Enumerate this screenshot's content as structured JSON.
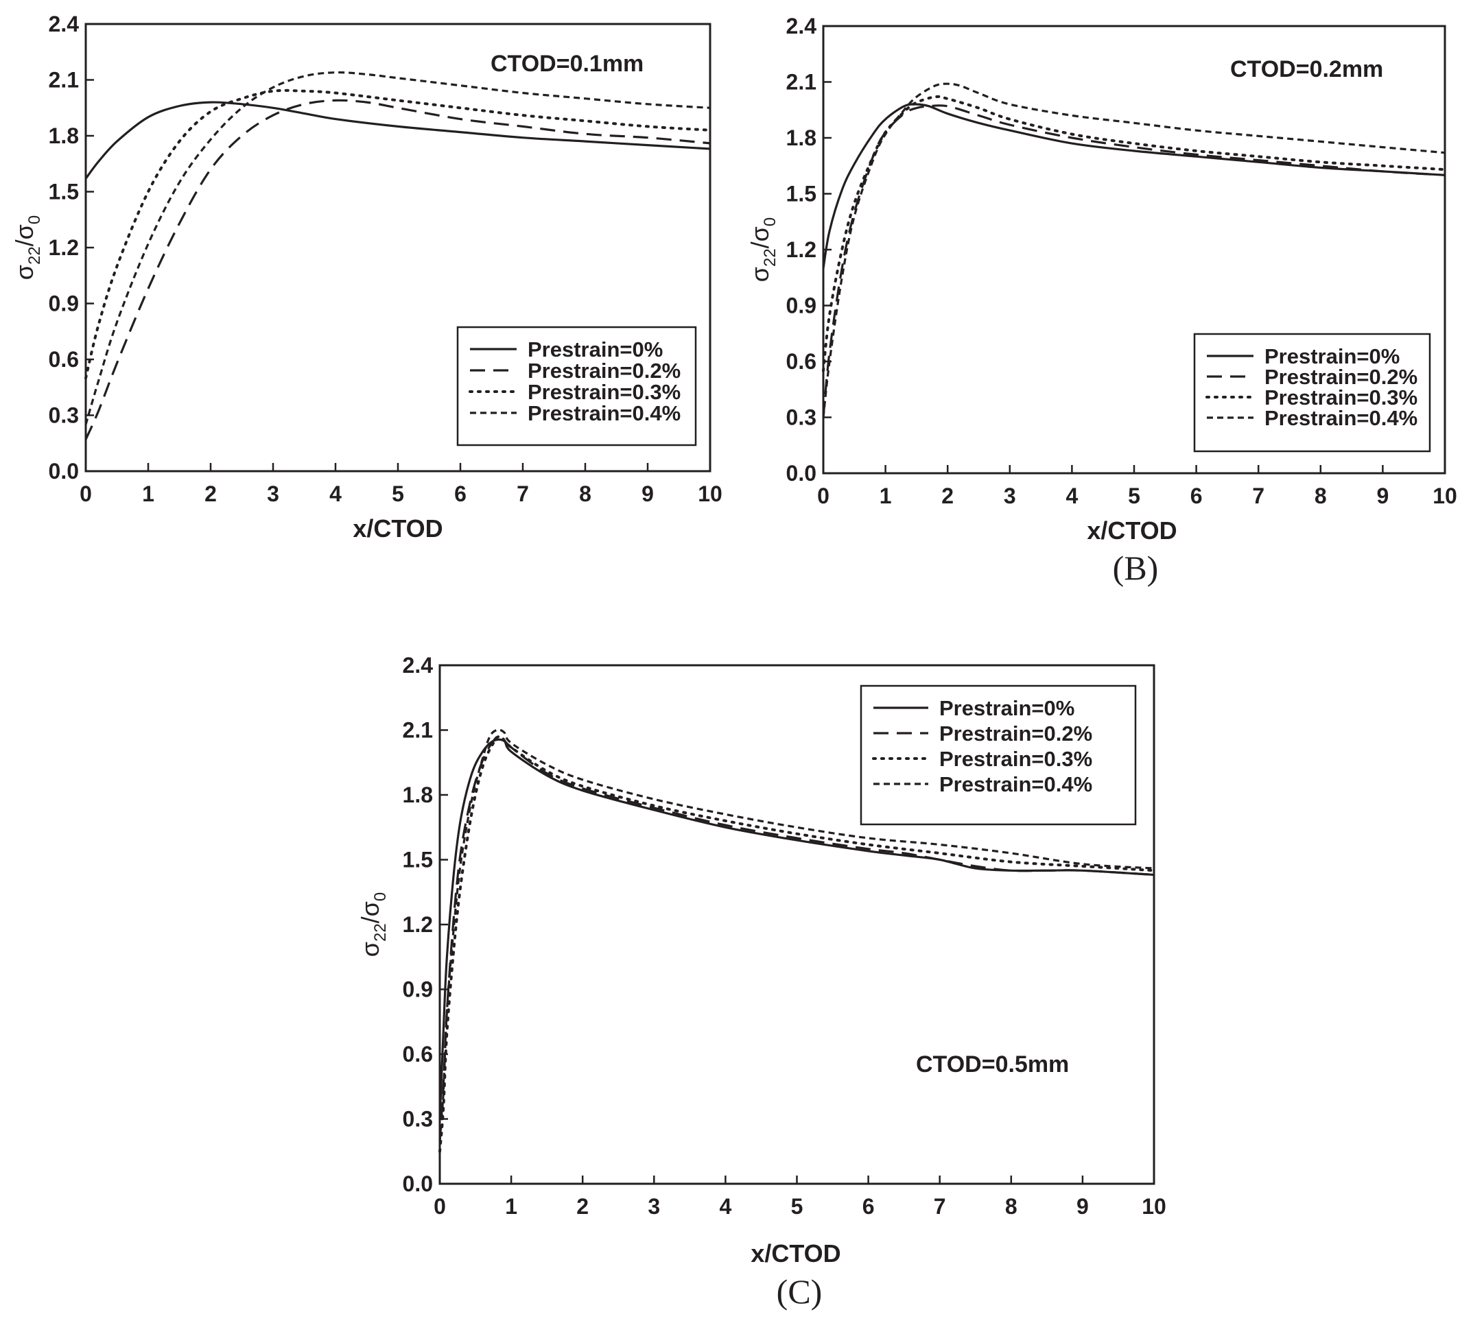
{
  "figure": {
    "legend_entries": [
      "Prestrain=0%",
      "Prestrain=0.2%",
      "Prestrain=0.3%",
      "Prestrain=0.4%"
    ],
    "series_styles": {
      "Prestrain=0%": "solid",
      "Prestrain=0.2%": "long-dash",
      "Prestrain=0.3%": "dotted",
      "Prestrain=0.4%": "short-dash"
    },
    "line_color": "#231f20"
  },
  "chart_data": [
    {
      "type": "line",
      "panel_label": "",
      "annotation": "CTOD=0.1mm",
      "xlabel": "x/CTOD",
      "ylabel": "σ22/σ0",
      "xlim": [
        0,
        10
      ],
      "ylim": [
        0,
        2.4
      ],
      "xticks": [
        "0",
        "1",
        "2",
        "3",
        "4",
        "5",
        "6",
        "7",
        "8",
        "9",
        "10"
      ],
      "yticks": [
        "0.0",
        "0.3",
        "0.6",
        "0.9",
        "1.2",
        "1.5",
        "1.8",
        "2.1",
        "2.4"
      ],
      "legend_position": "lower-right",
      "series": [
        {
          "name": "Prestrain=0%",
          "x": [
            0,
            0.2,
            0.5,
            1,
            1.5,
            2,
            2.5,
            3,
            3.5,
            4,
            5,
            6,
            7,
            8,
            9,
            10
          ],
          "y": [
            1.57,
            1.66,
            1.77,
            1.9,
            1.96,
            1.98,
            1.97,
            1.95,
            1.92,
            1.89,
            1.85,
            1.82,
            1.79,
            1.77,
            1.75,
            1.73
          ]
        },
        {
          "name": "Prestrain=0.2%",
          "x": [
            0,
            0.2,
            0.5,
            1,
            1.5,
            2,
            2.5,
            3,
            3.5,
            4,
            4.5,
            5,
            6,
            7,
            8,
            9,
            10
          ],
          "y": [
            0.17,
            0.32,
            0.58,
            0.98,
            1.33,
            1.62,
            1.8,
            1.91,
            1.97,
            1.99,
            1.98,
            1.95,
            1.89,
            1.85,
            1.81,
            1.79,
            1.76
          ]
        },
        {
          "name": "Prestrain=0.3%",
          "x": [
            0,
            0.2,
            0.5,
            1,
            1.5,
            2,
            2.5,
            3,
            3.5,
            4,
            5,
            6,
            7,
            8,
            9,
            10
          ],
          "y": [
            0.5,
            0.78,
            1.1,
            1.5,
            1.77,
            1.93,
            2.0,
            2.04,
            2.04,
            2.03,
            1.99,
            1.95,
            1.91,
            1.88,
            1.85,
            1.83
          ]
        },
        {
          "name": "Prestrain=0.4%",
          "x": [
            0,
            0.2,
            0.5,
            1,
            1.5,
            2,
            2.5,
            3,
            3.5,
            4,
            4.5,
            5,
            6,
            7,
            8,
            9,
            10
          ],
          "y": [
            0.25,
            0.48,
            0.8,
            1.22,
            1.55,
            1.78,
            1.95,
            2.06,
            2.12,
            2.14,
            2.13,
            2.11,
            2.07,
            2.03,
            2.0,
            1.97,
            1.95
          ]
        }
      ]
    },
    {
      "type": "line",
      "panel_label": "(B)",
      "annotation": "CTOD=0.2mm",
      "xlabel": "x/CTOD",
      "ylabel": "σ22/σ0",
      "xlim": [
        0,
        10
      ],
      "ylim": [
        0,
        2.4
      ],
      "xticks": [
        "0",
        "1",
        "2",
        "3",
        "4",
        "5",
        "6",
        "7",
        "8",
        "9",
        "10"
      ],
      "yticks": [
        "0.0",
        "0.3",
        "0.6",
        "0.9",
        "1.2",
        "1.5",
        "1.8",
        "2.1",
        "2.4"
      ],
      "legend_position": "lower-right",
      "series": [
        {
          "name": "Prestrain=0%",
          "x": [
            0,
            0.1,
            0.3,
            0.5,
            0.8,
            1,
            1.3,
            1.5,
            1.7,
            2,
            2.5,
            3,
            4,
            5,
            6,
            7,
            8,
            9,
            10
          ],
          "y": [
            1.1,
            1.3,
            1.52,
            1.66,
            1.82,
            1.9,
            1.97,
            1.98,
            1.97,
            1.93,
            1.88,
            1.84,
            1.77,
            1.73,
            1.7,
            1.67,
            1.64,
            1.62,
            1.6
          ]
        },
        {
          "name": "Prestrain=0.2%",
          "x": [
            0,
            0.1,
            0.3,
            0.5,
            0.8,
            1,
            1.3,
            1.5,
            1.7,
            2,
            2.5,
            3,
            4,
            5,
            6,
            7,
            8,
            9,
            10
          ],
          "y": [
            0.3,
            0.65,
            1.1,
            1.4,
            1.7,
            1.83,
            1.93,
            1.96,
            1.97,
            1.97,
            1.92,
            1.87,
            1.8,
            1.75,
            1.71,
            1.68,
            1.65,
            1.62,
            1.6
          ]
        },
        {
          "name": "Prestrain=0.3%",
          "x": [
            0,
            0.1,
            0.3,
            0.5,
            0.8,
            1,
            1.3,
            1.5,
            1.8,
            2,
            2.5,
            3,
            4,
            5,
            6,
            7,
            8,
            9,
            10
          ],
          "y": [
            0.55,
            0.85,
            1.2,
            1.45,
            1.7,
            1.83,
            1.94,
            1.99,
            2.02,
            2.01,
            1.96,
            1.9,
            1.82,
            1.77,
            1.73,
            1.7,
            1.67,
            1.65,
            1.63
          ]
        },
        {
          "name": "Prestrain=0.4%",
          "x": [
            0,
            0.1,
            0.3,
            0.5,
            0.8,
            1,
            1.3,
            1.5,
            1.8,
            2,
            2.2,
            2.5,
            3,
            4,
            5,
            6,
            7,
            8,
            9,
            10
          ],
          "y": [
            0.3,
            0.6,
            1.05,
            1.38,
            1.68,
            1.82,
            1.95,
            2.02,
            2.08,
            2.09,
            2.08,
            2.04,
            1.98,
            1.92,
            1.88,
            1.84,
            1.81,
            1.78,
            1.75,
            1.72
          ]
        }
      ]
    },
    {
      "type": "line",
      "panel_label": "(C)",
      "annotation": "CTOD=0.5mm",
      "xlabel": "x/CTOD",
      "ylabel": "σ22/σ0",
      "xlim": [
        0,
        10
      ],
      "ylim": [
        0,
        2.4
      ],
      "xticks": [
        "0",
        "1",
        "2",
        "3",
        "4",
        "5",
        "6",
        "7",
        "8",
        "9",
        "10"
      ],
      "yticks": [
        "0.0",
        "0.3",
        "0.6",
        "0.9",
        "1.2",
        "1.5",
        "1.8",
        "2.1",
        "2.4"
      ],
      "legend_position": "top-right",
      "series": [
        {
          "name": "Prestrain=0%",
          "x": [
            0,
            0.05,
            0.1,
            0.2,
            0.3,
            0.45,
            0.6,
            0.75,
            0.9,
            1,
            1.5,
            2,
            3,
            4,
            5,
            6,
            6.5,
            7,
            7.5,
            8,
            8.5,
            9,
            10
          ],
          "y": [
            0.3,
            0.7,
            1.05,
            1.45,
            1.7,
            1.9,
            2.0,
            2.05,
            2.05,
            2.0,
            1.89,
            1.82,
            1.73,
            1.65,
            1.59,
            1.54,
            1.52,
            1.5,
            1.46,
            1.45,
            1.45,
            1.45,
            1.43
          ]
        },
        {
          "name": "Prestrain=0.2%",
          "x": [
            0,
            0.05,
            0.1,
            0.2,
            0.3,
            0.45,
            0.6,
            0.75,
            0.85,
            1,
            1.5,
            2,
            3,
            4,
            5,
            6,
            6.5,
            7,
            7.5,
            8,
            8.5,
            9,
            10
          ],
          "y": [
            0.2,
            0.45,
            0.8,
            1.25,
            1.55,
            1.8,
            1.96,
            2.05,
            2.07,
            2.02,
            1.9,
            1.83,
            1.74,
            1.66,
            1.6,
            1.55,
            1.53,
            1.5,
            1.47,
            1.45,
            1.45,
            1.45,
            1.43
          ]
        },
        {
          "name": "Prestrain=0.3%",
          "x": [
            0,
            0.05,
            0.1,
            0.2,
            0.3,
            0.45,
            0.6,
            0.75,
            0.85,
            1,
            1.5,
            2,
            3,
            4,
            5,
            6,
            7,
            8,
            9,
            10
          ],
          "y": [
            0.15,
            0.35,
            0.7,
            1.1,
            1.4,
            1.72,
            1.93,
            2.04,
            2.07,
            2.02,
            1.91,
            1.84,
            1.75,
            1.68,
            1.62,
            1.57,
            1.53,
            1.49,
            1.47,
            1.45
          ]
        },
        {
          "name": "Prestrain=0.4%",
          "x": [
            0,
            0.05,
            0.1,
            0.2,
            0.3,
            0.45,
            0.6,
            0.7,
            0.8,
            0.9,
            1,
            1.5,
            2,
            3,
            4,
            5,
            6,
            7,
            8,
            9,
            10
          ],
          "y": [
            0.2,
            0.42,
            0.8,
            1.2,
            1.5,
            1.78,
            1.97,
            2.07,
            2.1,
            2.09,
            2.04,
            1.94,
            1.87,
            1.78,
            1.71,
            1.65,
            1.6,
            1.57,
            1.53,
            1.48,
            1.46
          ]
        }
      ]
    }
  ]
}
